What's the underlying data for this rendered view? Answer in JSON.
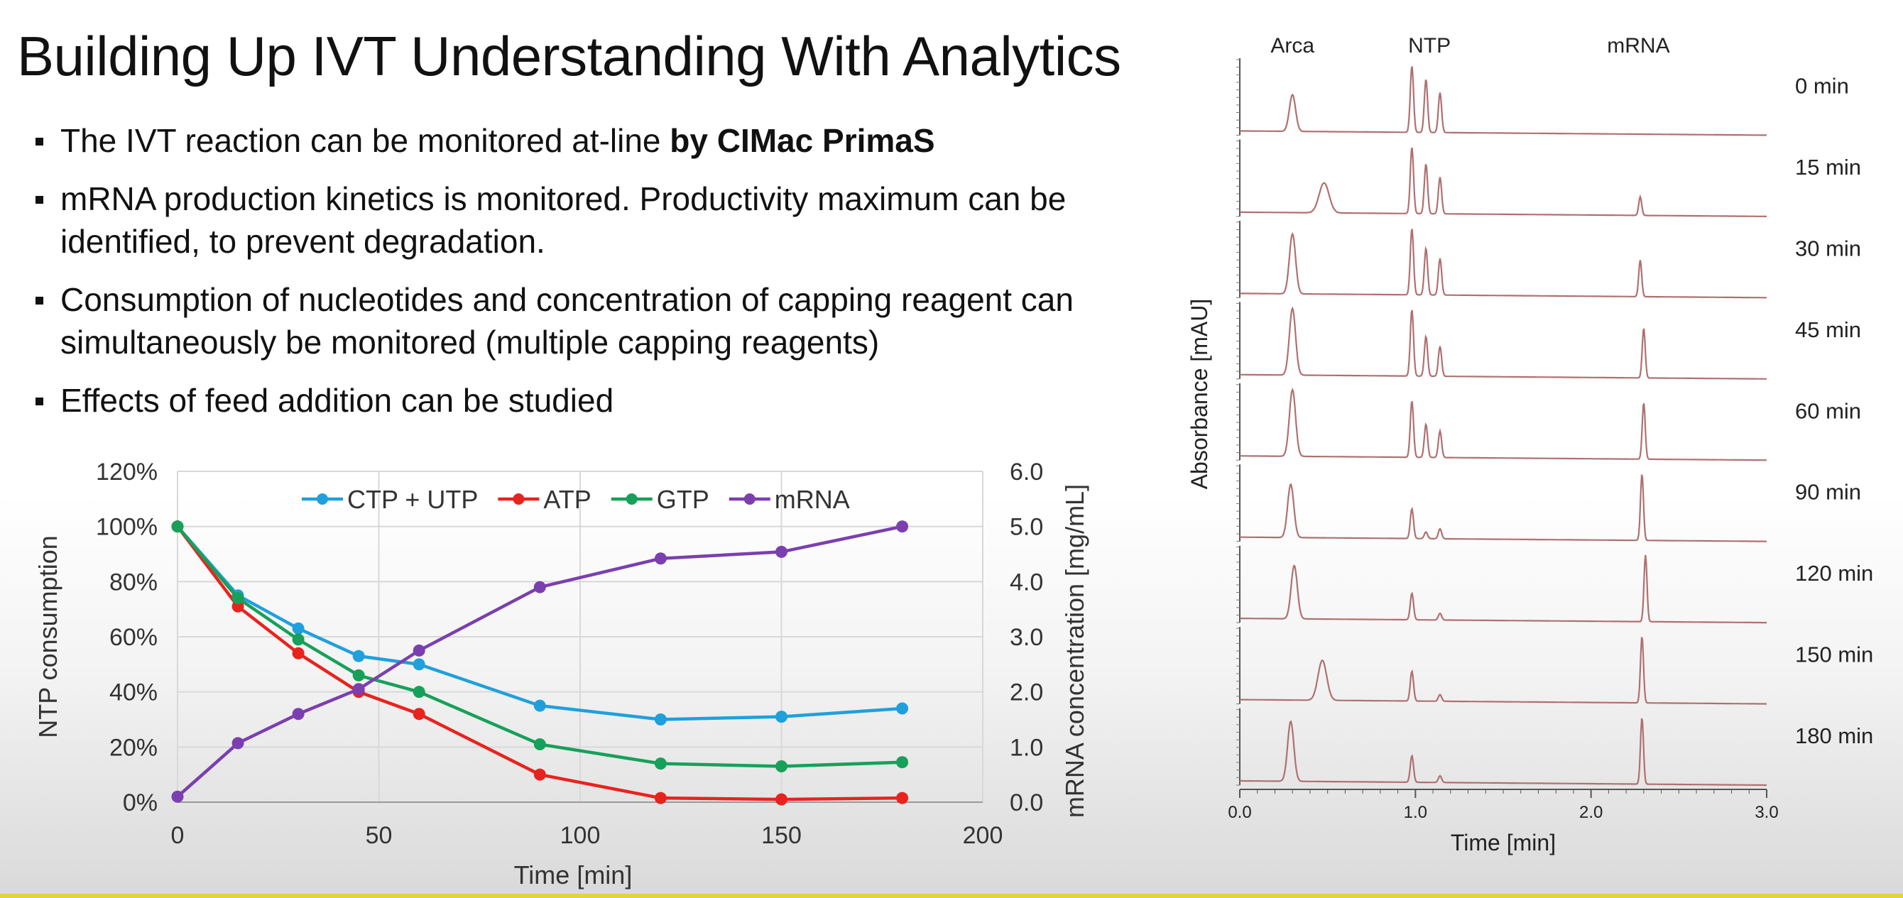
{
  "slide": {
    "title": "Building Up IVT Understanding With Analytics",
    "bullets": [
      {
        "text": "The IVT reaction can be monitored at-line ",
        "bold": "by CIMac PrimaS"
      },
      {
        "text": "mRNA production kinetics is monitored. Productivity maximum can be identified, to prevent degradation.",
        "bold": ""
      },
      {
        "text": "Consumption of nucleotides and concentration of capping reagent can simultaneously be monitored (multiple capping reagents)",
        "bold": ""
      },
      {
        "text": "Effects of feed addition can be studied",
        "bold": ""
      }
    ]
  },
  "chart_data": [
    {
      "type": "line",
      "title": "",
      "xlabel": "Time [min]",
      "ylabel": "NTP consumption",
      "y2label": "mRNA concentration [mg/mL]",
      "xlim": [
        0,
        200
      ],
      "ylim": [
        0,
        120
      ],
      "y2lim": [
        0,
        6
      ],
      "xticks": [
        0,
        50,
        100,
        150,
        200
      ],
      "yticks": [
        0,
        20,
        40,
        60,
        80,
        100,
        120
      ],
      "y2ticks": [
        0,
        1,
        2,
        3,
        4,
        5,
        6
      ],
      "xtick_labels": [
        "0",
        "50",
        "100",
        "150",
        "200"
      ],
      "ytick_labels": [
        "0%",
        "20%",
        "40%",
        "60%",
        "80%",
        "100%",
        "120%"
      ],
      "y2tick_labels": [
        "0.0",
        "1.0",
        "2.0",
        "3.0",
        "4.0",
        "5.0",
        "6.0"
      ],
      "grid": true,
      "legend": "top",
      "x": [
        0,
        15,
        30,
        45,
        60,
        90,
        120,
        150,
        180
      ],
      "series": [
        {
          "name": "CTP + UTP",
          "color": "#1fa0dc",
          "axis": "left",
          "values": [
            100,
            75,
            63,
            53,
            50,
            35,
            30,
            31,
            34
          ]
        },
        {
          "name": "ATP",
          "color": "#e8231e",
          "axis": "left",
          "values": [
            100,
            71,
            54,
            40,
            32,
            10,
            1.5,
            1,
            1.5
          ]
        },
        {
          "name": "GTP",
          "color": "#17a05a",
          "axis": "left",
          "values": [
            100,
            74,
            59,
            46,
            40,
            21,
            14,
            13,
            14.5
          ]
        },
        {
          "name": "mRNA",
          "color": "#7b3fb0",
          "axis": "right",
          "values": [
            0.1,
            1.07,
            1.6,
            2.05,
            2.75,
            3.9,
            4.42,
            4.54,
            5.0
          ]
        }
      ]
    },
    {
      "type": "line",
      "title": "",
      "xlabel": "Time [min]",
      "ylabel": "Absorbance [mAU]",
      "xlim": [
        0,
        3
      ],
      "xticks": [
        0,
        1,
        2,
        3
      ],
      "xtick_labels": [
        "0.0",
        "1.0",
        "2.0",
        "3.0"
      ],
      "peak_labels": [
        {
          "text": "Arca",
          "x": 0.3
        },
        {
          "text": "NTP",
          "x": 1.08
        },
        {
          "text": "mRNA",
          "x": 2.27
        }
      ],
      "line_color": "#b07070",
      "traces": [
        {
          "label": "0 min",
          "peaks": [
            {
              "x": 0.3,
              "h": 0.55,
              "w": 0.025
            },
            {
              "x": 0.98,
              "h": 1.0,
              "w": 0.013
            },
            {
              "x": 1.06,
              "h": 0.8,
              "w": 0.013
            },
            {
              "x": 1.14,
              "h": 0.6,
              "w": 0.013
            }
          ]
        },
        {
          "label": "15 min",
          "peaks": [
            {
              "x": 0.48,
              "h": 0.45,
              "w": 0.04
            },
            {
              "x": 0.98,
              "h": 1.0,
              "w": 0.013
            },
            {
              "x": 1.06,
              "h": 0.75,
              "w": 0.013
            },
            {
              "x": 1.14,
              "h": 0.55,
              "w": 0.013
            },
            {
              "x": 2.28,
              "h": 0.28,
              "w": 0.012
            }
          ]
        },
        {
          "label": "30 min",
          "peaks": [
            {
              "x": 0.3,
              "h": 0.9,
              "w": 0.025
            },
            {
              "x": 0.98,
              "h": 1.0,
              "w": 0.013
            },
            {
              "x": 1.06,
              "h": 0.7,
              "w": 0.013
            },
            {
              "x": 1.14,
              "h": 0.55,
              "w": 0.013
            },
            {
              "x": 2.28,
              "h": 0.55,
              "w": 0.012
            }
          ]
        },
        {
          "label": "45 min",
          "peaks": [
            {
              "x": 0.3,
              "h": 1.0,
              "w": 0.025
            },
            {
              "x": 0.98,
              "h": 1.0,
              "w": 0.013
            },
            {
              "x": 1.06,
              "h": 0.6,
              "w": 0.013
            },
            {
              "x": 1.14,
              "h": 0.45,
              "w": 0.013
            },
            {
              "x": 2.3,
              "h": 0.75,
              "w": 0.012
            }
          ]
        },
        {
          "label": "60 min",
          "peaks": [
            {
              "x": 0.3,
              "h": 1.0,
              "w": 0.025
            },
            {
              "x": 0.98,
              "h": 0.85,
              "w": 0.013
            },
            {
              "x": 1.06,
              "h": 0.5,
              "w": 0.013
            },
            {
              "x": 1.14,
              "h": 0.4,
              "w": 0.013
            },
            {
              "x": 2.3,
              "h": 0.85,
              "w": 0.012
            }
          ]
        },
        {
          "label": "90 min",
          "peaks": [
            {
              "x": 0.29,
              "h": 0.8,
              "w": 0.025
            },
            {
              "x": 0.98,
              "h": 0.45,
              "w": 0.013
            },
            {
              "x": 1.06,
              "h": 0.1,
              "w": 0.013
            },
            {
              "x": 1.14,
              "h": 0.15,
              "w": 0.013
            },
            {
              "x": 2.29,
              "h": 1.0,
              "w": 0.012
            }
          ]
        },
        {
          "label": "120 min",
          "peaks": [
            {
              "x": 0.31,
              "h": 0.8,
              "w": 0.025
            },
            {
              "x": 0.98,
              "h": 0.4,
              "w": 0.013
            },
            {
              "x": 1.14,
              "h": 0.1,
              "w": 0.013
            },
            {
              "x": 2.31,
              "h": 1.0,
              "w": 0.012
            }
          ]
        },
        {
          "label": "150 min",
          "peaks": [
            {
              "x": 0.47,
              "h": 0.6,
              "w": 0.035
            },
            {
              "x": 0.98,
              "h": 0.45,
              "w": 0.013
            },
            {
              "x": 1.14,
              "h": 0.1,
              "w": 0.013
            },
            {
              "x": 2.29,
              "h": 1.0,
              "w": 0.012
            }
          ]
        },
        {
          "label": "180 min",
          "peaks": [
            {
              "x": 0.29,
              "h": 0.9,
              "w": 0.025
            },
            {
              "x": 0.98,
              "h": 0.4,
              "w": 0.013
            },
            {
              "x": 1.14,
              "h": 0.1,
              "w": 0.013
            },
            {
              "x": 2.29,
              "h": 1.0,
              "w": 0.012
            }
          ]
        }
      ]
    }
  ]
}
